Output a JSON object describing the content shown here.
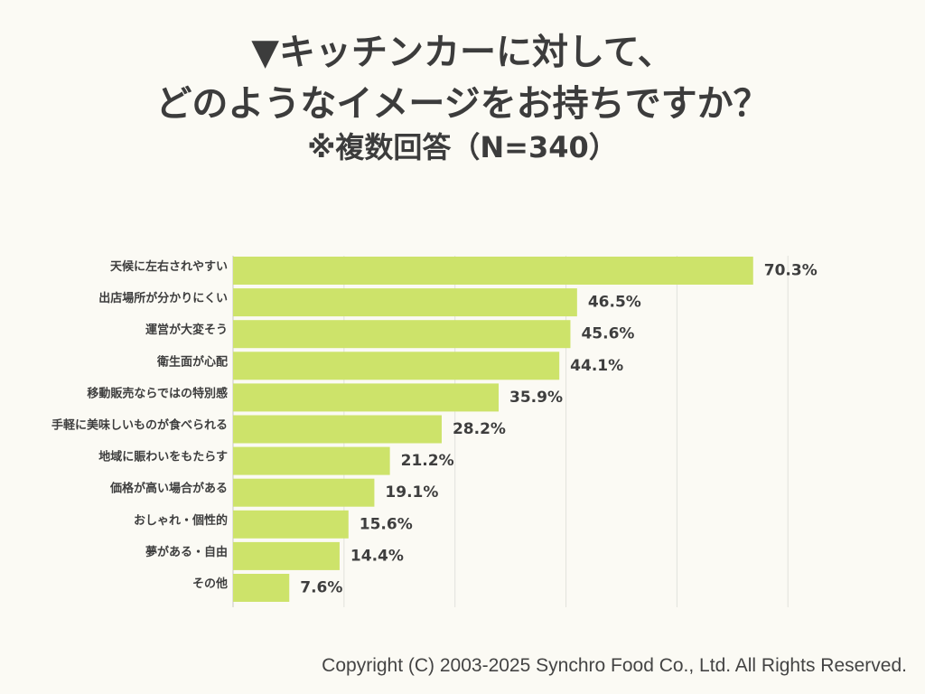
{
  "title_line_1": "▼キッチンカーに対して、",
  "title_line_2": "どのようなイメージをお持ちですか？",
  "subtitle": "※複数回答（N=340）",
  "copyright": "Copyright (C) 2003-2025  Synchro Food Co., Ltd. All Rights Reserved.",
  "chart_data": {
    "type": "bar",
    "orientation": "horizontal",
    "categories": [
      "天候に左右されやすい",
      "出店場所が分かりにくい",
      "運営が大変そう",
      "衛生面が心配",
      "移動販売ならではの特別感",
      "手軽に美味しいものが食べられる",
      "地域に賑わいをもたらす",
      "価格が高い場合がある",
      "おしゃれ・個性的",
      "夢がある・自由",
      "その他"
    ],
    "values": [
      70.3,
      46.5,
      45.6,
      44.1,
      35.9,
      28.2,
      21.2,
      19.1,
      15.6,
      14.4,
      7.6
    ],
    "value_labels": [
      "70.3%",
      "46.5%",
      "45.6%",
      "44.1%",
      "35.9%",
      "28.2%",
      "21.2%",
      "19.1%",
      "15.6%",
      "14.4%",
      "7.6%"
    ],
    "unit": "%",
    "xlim": [
      0,
      75
    ],
    "grid": true,
    "bar_color": "#cde36a",
    "grid_color": "#e2e2dc",
    "axis_color": "#c8c8c0"
  }
}
